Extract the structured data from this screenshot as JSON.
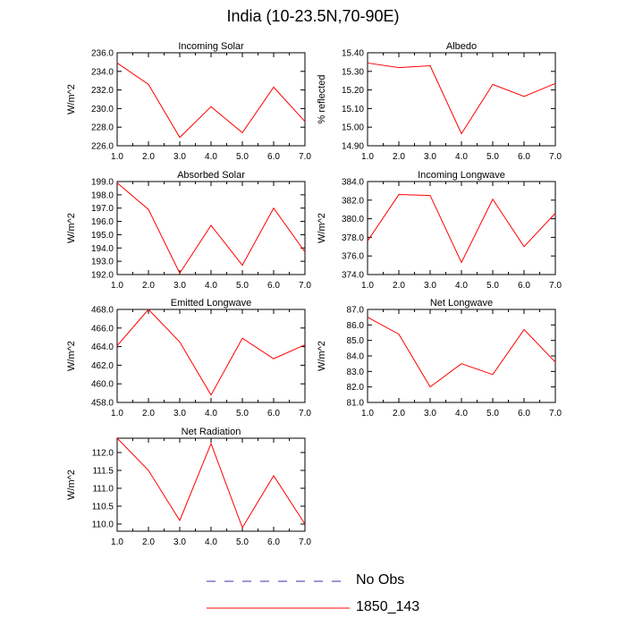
{
  "page": {
    "title": "India (10-23.5N,70-90E)"
  },
  "legend": {
    "items": [
      {
        "label": "No Obs",
        "color": "#3333aa",
        "style": "dashed"
      },
      {
        "label": "1850_143",
        "color": "#ff0000",
        "style": "solid"
      }
    ]
  },
  "chart_data": [
    {
      "type": "line",
      "title": "Incoming Solar",
      "ylabel": "W/m^2",
      "xlim": [
        1.0,
        7.0
      ],
      "ylim": [
        226.0,
        236.0
      ],
      "xticks": [
        "1.0",
        "2.0",
        "3.0",
        "4.0",
        "5.0",
        "6.0",
        "7.0"
      ],
      "yticks": [
        "226.0",
        "228.0",
        "230.0",
        "232.0",
        "234.0",
        "236.0"
      ],
      "series": [
        {
          "name": "1850_143",
          "x": [
            1,
            2,
            3,
            4,
            5,
            6,
            7
          ],
          "values": [
            234.9,
            232.6,
            226.9,
            230.2,
            227.4,
            232.3,
            228.6
          ]
        }
      ]
    },
    {
      "type": "line",
      "title": "Albedo",
      "ylabel": "% reflected",
      "xlim": [
        1.0,
        7.0
      ],
      "ylim": [
        14.9,
        15.4
      ],
      "xticks": [
        "1.0",
        "2.0",
        "3.0",
        "4.0",
        "5.0",
        "6.0",
        "7.0"
      ],
      "yticks": [
        "14.90",
        "15.00",
        "15.10",
        "15.20",
        "15.30",
        "15.40"
      ],
      "series": [
        {
          "name": "1850_143",
          "x": [
            1,
            2,
            3,
            4,
            5,
            6,
            7
          ],
          "values": [
            15.345,
            15.32,
            15.33,
            14.965,
            15.23,
            15.165,
            15.235
          ]
        }
      ]
    },
    {
      "type": "line",
      "title": "Absorbed Solar",
      "ylabel": "W/m^2",
      "xlim": [
        1.0,
        7.0
      ],
      "ylim": [
        192.0,
        199.0
      ],
      "xticks": [
        "1.0",
        "2.0",
        "3.0",
        "4.0",
        "5.0",
        "6.0",
        "7.0"
      ],
      "yticks": [
        "192.0",
        "193.0",
        "194.0",
        "195.0",
        "196.0",
        "197.0",
        "198.0",
        "199.0"
      ],
      "series": [
        {
          "name": "1850_143",
          "x": [
            1,
            2,
            3,
            4,
            5,
            6,
            7
          ],
          "values": [
            198.9,
            196.9,
            192.1,
            195.7,
            192.7,
            197.0,
            193.7
          ]
        }
      ]
    },
    {
      "type": "line",
      "title": "Incoming Longwave",
      "ylabel": "W/m^2",
      "xlim": [
        1.0,
        7.0
      ],
      "ylim": [
        374.0,
        384.0
      ],
      "xticks": [
        "1.0",
        "2.0",
        "3.0",
        "4.0",
        "5.0",
        "6.0",
        "7.0"
      ],
      "yticks": [
        "374.0",
        "376.0",
        "378.0",
        "380.0",
        "382.0",
        "384.0"
      ],
      "series": [
        {
          "name": "1850_143",
          "x": [
            1,
            2,
            3,
            4,
            5,
            6,
            7
          ],
          "values": [
            377.6,
            382.6,
            382.5,
            375.3,
            382.1,
            377.0,
            380.6
          ]
        }
      ]
    },
    {
      "type": "line",
      "title": "Emitted Longwave",
      "ylabel": "W/m^2",
      "xlim": [
        1.0,
        7.0
      ],
      "ylim": [
        458.0,
        468.0
      ],
      "xticks": [
        "1.0",
        "2.0",
        "3.0",
        "4.0",
        "5.0",
        "6.0",
        "7.0"
      ],
      "yticks": [
        "458.0",
        "460.0",
        "462.0",
        "464.0",
        "466.0",
        "468.0"
      ],
      "series": [
        {
          "name": "1850_143",
          "x": [
            1,
            2,
            3,
            4,
            5,
            6,
            7
          ],
          "values": [
            464.1,
            468.0,
            464.5,
            458.8,
            464.9,
            462.7,
            464.2
          ]
        }
      ]
    },
    {
      "type": "line",
      "title": "Net Longwave",
      "ylabel": "W/m^2",
      "xlim": [
        1.0,
        7.0
      ],
      "ylim": [
        81.0,
        87.0
      ],
      "xticks": [
        "1.0",
        "2.0",
        "3.0",
        "4.0",
        "5.0",
        "6.0",
        "7.0"
      ],
      "yticks": [
        "81.0",
        "82.0",
        "83.0",
        "84.0",
        "85.0",
        "86.0",
        "87.0"
      ],
      "series": [
        {
          "name": "1850_143",
          "x": [
            1,
            2,
            3,
            4,
            5,
            6,
            7
          ],
          "values": [
            86.5,
            85.4,
            82.0,
            83.5,
            82.8,
            85.7,
            83.6
          ]
        }
      ]
    },
    {
      "type": "line",
      "title": "Net Radiation",
      "ylabel": "W/m^2",
      "xlim": [
        1.0,
        7.0
      ],
      "ylim": [
        109.8,
        112.4
      ],
      "xticks": [
        "1.0",
        "2.0",
        "3.0",
        "4.0",
        "5.0",
        "6.0",
        "7.0"
      ],
      "yticks": [
        "110.0",
        "110.5",
        "111.0",
        "111.5",
        "112.0"
      ],
      "series": [
        {
          "name": "1850_143",
          "x": [
            1,
            2,
            3,
            4,
            5,
            6,
            7
          ],
          "values": [
            112.4,
            111.5,
            110.1,
            112.25,
            109.9,
            111.35,
            110.0
          ]
        }
      ]
    }
  ]
}
